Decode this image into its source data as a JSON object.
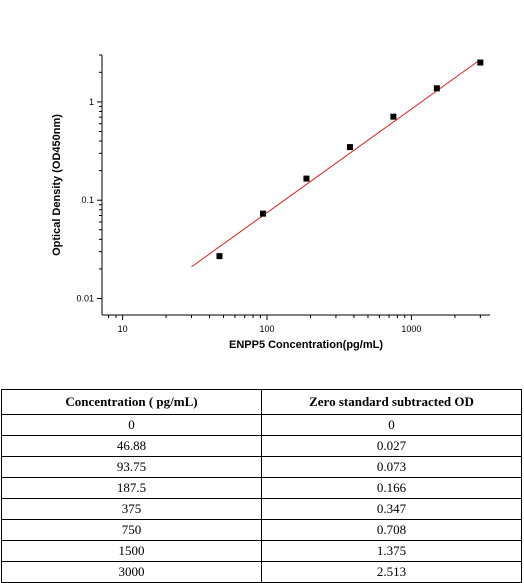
{
  "chart_data": {
    "type": "scatter",
    "x_scale": "log",
    "y_scale": "log",
    "xlabel": "ENPP5  Concentration(pg/mL)",
    "ylabel": "Optical Density (OD450nm)",
    "xlim": [
      10,
      3000
    ],
    "ylim": [
      0.01,
      3
    ],
    "x_ticks": [
      10,
      100,
      1000
    ],
    "x_tick_labels": [
      "10",
      "100",
      "1000"
    ],
    "y_ticks": [
      0.01,
      0.1,
      1
    ],
    "y_tick_labels": [
      "0.01",
      "0.1",
      "1"
    ],
    "grid": false,
    "points": {
      "x": [
        46.88,
        93.75,
        187.5,
        375,
        750,
        1500,
        3000
      ],
      "y": [
        0.027,
        0.073,
        0.166,
        0.347,
        0.708,
        1.375,
        2.513
      ]
    },
    "fit_line": {
      "x": [
        30,
        2900
      ],
      "y": [
        0.021,
        2.6
      ],
      "color": "#e02020"
    }
  },
  "table": {
    "headers": [
      "Concentration ( pg/mL)",
      "Zero standard subtracted OD"
    ],
    "rows": [
      [
        "0",
        "0"
      ],
      [
        "46.88",
        "0.027"
      ],
      [
        "93.75",
        "0.073"
      ],
      [
        "187.5",
        "0.166"
      ],
      [
        "375",
        "0.347"
      ],
      [
        "750",
        "0.708"
      ],
      [
        "1500",
        "1.375"
      ],
      [
        "3000",
        "2.513"
      ]
    ]
  }
}
